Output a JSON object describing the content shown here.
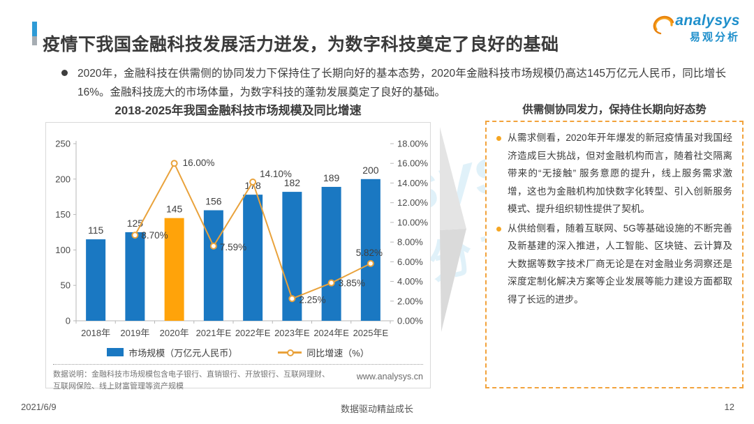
{
  "page": {
    "title": "疫情下我国金融科技发展活力迸发，为数字科技奠定了良好的基础",
    "intro": "2020年，金融科技在供需侧的协同发力下保持住了长期向好的基本态势，2020年金融科技市场规模仍高达145万亿元人民币，同比增长16%。金融科技庞大的市场体量，为数字科技的蓬勃发展奠定了良好的基础。",
    "footer": {
      "date": "2021/6/9",
      "center": "数据驱动精益成长",
      "page_number": "12"
    }
  },
  "logo": {
    "brand": "analysys",
    "brand_cn": "易观分析"
  },
  "chart_data": {
    "type": "bar",
    "title": "2018-2025年我国金融科技市场规模及同比增速",
    "categories": [
      "2018年",
      "2019年",
      "2020年",
      "2021年E",
      "2022年E",
      "2023年E",
      "2024年E",
      "2025年E"
    ],
    "series": [
      {
        "name": "市场规模（万亿元人民币）",
        "type": "bar",
        "axis": "left",
        "values": [
          115,
          125,
          145,
          156,
          178,
          182,
          189,
          200
        ],
        "color": "#1A78C2",
        "highlight_color": "#FFA30A",
        "highlight_index": 2
      },
      {
        "name": "同比增速（%）",
        "type": "line",
        "axis": "right",
        "values": [
          null,
          8.7,
          16.0,
          7.59,
          14.1,
          2.25,
          3.85,
          5.82
        ],
        "labels": [
          null,
          "8.70%",
          "16.00%",
          "7.59%",
          "14.10%",
          "2.25%",
          "3.85%",
          "5.82%"
        ],
        "color": "#E9A23B"
      }
    ],
    "left_axis": {
      "min": 0,
      "max": 250,
      "step": 50,
      "ticks": [
        "0",
        "50",
        "100",
        "150",
        "200",
        "250"
      ]
    },
    "right_axis": {
      "min": 0,
      "max": 18,
      "step": 2,
      "ticks": [
        "0.00%",
        "2.00%",
        "4.00%",
        "6.00%",
        "8.00%",
        "10.00%",
        "12.00%",
        "14.00%",
        "16.00%",
        "18.00%"
      ]
    },
    "grid": false,
    "legend_position": "bottom",
    "note": "数据说明：金融科技市场规模包含电子银行、直销银行、开放银行、互联网理财、互联网保险、线上财富管理等资产规模",
    "website": "www.analysys.cn"
  },
  "insight": {
    "title": "供需侧协同发力，保持住长期向好态势",
    "bullets": [
      "从需求侧看，2020年开年爆发的新冠疫情虽对我国经济造成巨大挑战，但对金融机构而言，随着社交隔离带来的“无接触” 服务意愿的提升，线上服务需求激增，这也为金融机构加快数字化转型、引入创新服务模式、提升组织韧性提供了契机。",
      "从供给侧看，随着互联网、5G等基础设施的不断完善及新基建的深入推进，人工智能、区块链、云计算及大数据等数字技术厂商无论是在对金融业务洞察还是深度定制化解决方案等企业发展等能力建设方面都取得了长远的进步。"
    ]
  },
  "colors": {
    "bar_blue": "#1A78C2",
    "bar_orange": "#FFA30A",
    "line_orange": "#E9A23B",
    "panel_dashed_border": "#F2A33C",
    "accent_blue": "#2E9BD6",
    "logo_blue": "#1E8FCB",
    "logo_orange": "#F6A11C"
  }
}
